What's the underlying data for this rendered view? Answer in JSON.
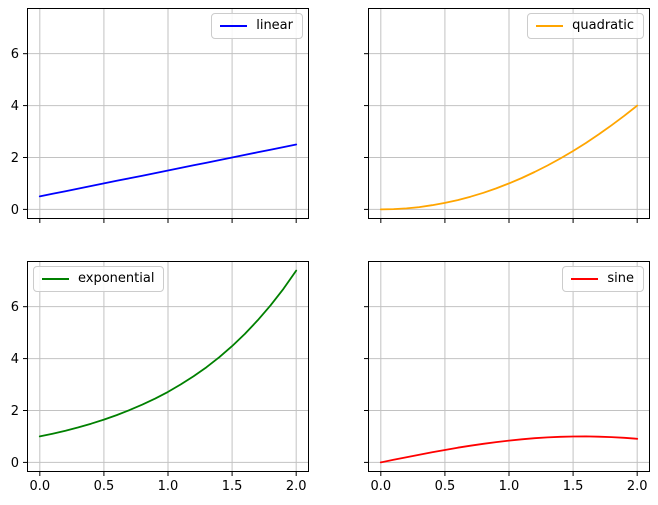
{
  "figure": {
    "background": "#ffffff",
    "kind": "2x2 matplotlib subplot grid, shared x and y axes"
  },
  "style": {
    "grid_color": "#c2c2c2",
    "spine_color": "#000000",
    "tick_color": "#000000",
    "tick_label_color": "#000000",
    "legend_border_color": "#cccccc",
    "legend_background": "#ffffff"
  },
  "chart_data": [
    {
      "type": "line",
      "title": "",
      "xlabel": "",
      "ylabel": "",
      "x": [
        0,
        0.1,
        0.2,
        0.3,
        0.4,
        0.5,
        0.6,
        0.7,
        0.8,
        0.9,
        1,
        1.1,
        1.2,
        1.3,
        1.4,
        1.5,
        1.6,
        1.7,
        1.8,
        1.9,
        2
      ],
      "series": [
        {
          "name": "linear",
          "color": "#0000ff",
          "y": [
            0.5,
            0.6,
            0.7,
            0.8,
            0.9,
            1,
            1.1,
            1.2,
            1.3,
            1.4,
            1.5,
            1.6,
            1.7,
            1.8,
            1.9,
            2,
            2.1,
            2.2,
            2.3,
            2.4,
            2.5
          ]
        }
      ],
      "xlim": [
        -0.1,
        2.1
      ],
      "ylim": [
        -0.37,
        7.76
      ],
      "xticks": [
        0,
        0.5,
        1,
        1.5,
        2
      ],
      "xtick_labels": [
        "0.0",
        "0.5",
        "1.0",
        "1.5",
        "2.0"
      ],
      "yticks": [
        0,
        2,
        4,
        6
      ],
      "ytick_labels": [
        "0",
        "2",
        "4",
        "6"
      ],
      "show_xtick_labels": false,
      "show_ytick_labels": true,
      "grid": true,
      "legend": {
        "label": "linear",
        "position": "upper right"
      }
    },
    {
      "type": "line",
      "title": "",
      "xlabel": "",
      "ylabel": "",
      "x": [
        0,
        0.1,
        0.2,
        0.3,
        0.4,
        0.5,
        0.6,
        0.7,
        0.8,
        0.9,
        1,
        1.1,
        1.2,
        1.3,
        1.4,
        1.5,
        1.6,
        1.7,
        1.8,
        1.9,
        2
      ],
      "series": [
        {
          "name": "quadratic",
          "color": "#ffa500",
          "y": [
            0,
            0.01,
            0.04,
            0.09,
            0.16,
            0.25,
            0.36,
            0.49,
            0.64,
            0.81,
            1,
            1.21,
            1.44,
            1.69,
            1.96,
            2.25,
            2.56,
            2.89,
            3.24,
            3.61,
            4
          ]
        }
      ],
      "xlim": [
        -0.1,
        2.1
      ],
      "ylim": [
        -0.37,
        7.76
      ],
      "xticks": [
        0,
        0.5,
        1,
        1.5,
        2
      ],
      "xtick_labels": [
        "0.0",
        "0.5",
        "1.0",
        "1.5",
        "2.0"
      ],
      "yticks": [
        0,
        2,
        4,
        6
      ],
      "ytick_labels": [
        "0",
        "2",
        "4",
        "6"
      ],
      "show_xtick_labels": false,
      "show_ytick_labels": false,
      "grid": true,
      "legend": {
        "label": "quadratic",
        "position": "upper right"
      }
    },
    {
      "type": "line",
      "title": "",
      "xlabel": "",
      "ylabel": "",
      "x": [
        0,
        0.1,
        0.2,
        0.3,
        0.4,
        0.5,
        0.6,
        0.7,
        0.8,
        0.9,
        1,
        1.1,
        1.2,
        1.3,
        1.4,
        1.5,
        1.6,
        1.7,
        1.8,
        1.9,
        2
      ],
      "series": [
        {
          "name": "exponential",
          "color": "#008000",
          "y": [
            1,
            1.105,
            1.221,
            1.35,
            1.492,
            1.649,
            1.822,
            2.014,
            2.226,
            2.46,
            2.718,
            3.004,
            3.32,
            3.669,
            4.055,
            4.482,
            4.953,
            5.474,
            6.05,
            6.686,
            7.389
          ]
        }
      ],
      "xlim": [
        -0.1,
        2.1
      ],
      "ylim": [
        -0.37,
        7.76
      ],
      "xticks": [
        0,
        0.5,
        1,
        1.5,
        2
      ],
      "xtick_labels": [
        "0.0",
        "0.5",
        "1.0",
        "1.5",
        "2.0"
      ],
      "yticks": [
        0,
        2,
        4,
        6
      ],
      "ytick_labels": [
        "0",
        "2",
        "4",
        "6"
      ],
      "show_xtick_labels": true,
      "show_ytick_labels": true,
      "grid": true,
      "legend": {
        "label": "exponential",
        "position": "upper left"
      }
    },
    {
      "type": "line",
      "title": "",
      "xlabel": "",
      "ylabel": "",
      "x": [
        0,
        0.1,
        0.2,
        0.3,
        0.4,
        0.5,
        0.6,
        0.7,
        0.8,
        0.9,
        1,
        1.1,
        1.2,
        1.3,
        1.4,
        1.5,
        1.6,
        1.7,
        1.8,
        1.9,
        2
      ],
      "series": [
        {
          "name": "sine",
          "color": "#ff0000",
          "y": [
            0,
            0.1,
            0.199,
            0.296,
            0.389,
            0.479,
            0.565,
            0.644,
            0.717,
            0.783,
            0.841,
            0.891,
            0.932,
            0.964,
            0.985,
            0.997,
            1,
            0.992,
            0.974,
            0.946,
            0.909
          ]
        }
      ],
      "xlim": [
        -0.1,
        2.1
      ],
      "ylim": [
        -0.37,
        7.76
      ],
      "xticks": [
        0,
        0.5,
        1,
        1.5,
        2
      ],
      "xtick_labels": [
        "0.0",
        "0.5",
        "1.0",
        "1.5",
        "2.0"
      ],
      "yticks": [
        0,
        2,
        4,
        6
      ],
      "ytick_labels": [
        "0",
        "2",
        "4",
        "6"
      ],
      "show_xtick_labels": true,
      "show_ytick_labels": false,
      "grid": true,
      "legend": {
        "label": "sine",
        "position": "upper right"
      }
    }
  ]
}
